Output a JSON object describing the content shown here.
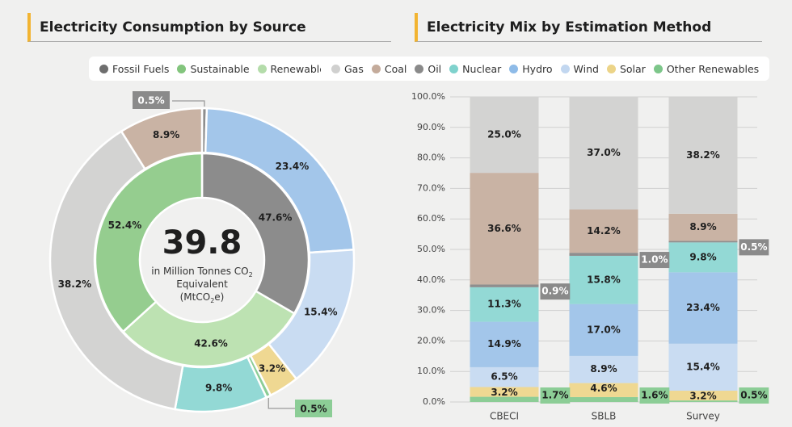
{
  "colors": {
    "accent": "#f2b431",
    "fossil": "#8c8c8c",
    "sustainable": "#95cd8f",
    "renewable": "#bde2b2",
    "gas": "#d3d3d2",
    "coal": "#c9b3a4",
    "oil": "#8e8e8e",
    "nuclear": "#93d9d5",
    "hydro": "#a3c6ea",
    "wind": "#c9dcf2",
    "solar": "#efd892",
    "other": "#8ccd96",
    "gray_label": "#8a8a8a",
    "green_label": "#8ccd96"
  },
  "left": {
    "title": "Electricity Consumption by Source",
    "legend": [
      {
        "label": "Fossil Fuels",
        "color": "#6e6e6e"
      },
      {
        "label": "Sustainable",
        "color": "#83c57d"
      },
      {
        "label": "Renewable",
        "color": "#b4dcaa"
      }
    ],
    "center": {
      "value": "39.8",
      "line1": "in Million Tonnes CO",
      "line1_sub": "2",
      "line2": "Equivalent",
      "line3_a": "(MtCO",
      "line3_sub": "2",
      "line3_b": "e)"
    }
  },
  "right": {
    "title": "Electricity Mix by Estimation Method",
    "legend": [
      {
        "label": "Gas",
        "color": "#d0d0cf"
      },
      {
        "label": "Coal",
        "color": "#c4ab9b"
      },
      {
        "label": "Oil",
        "color": "#8a8a8a"
      },
      {
        "label": "Nuclear",
        "color": "#7fd2cd"
      },
      {
        "label": "Hydro",
        "color": "#8ebbe8"
      },
      {
        "label": "Wind",
        "color": "#c2d7f0"
      },
      {
        "label": "Solar",
        "color": "#ecd488"
      },
      {
        "label": "Other Renewables",
        "color": "#7dc68a"
      }
    ]
  },
  "chart_data": [
    {
      "type": "pie",
      "variant": "nested-donut",
      "title": "Electricity Consumption by Source",
      "center_value": "39.8",
      "inner_ring": [
        {
          "name": "Fossil Fuels",
          "value": 47.6,
          "label": "47.6%"
        },
        {
          "name": "Renewable",
          "value": 42.6,
          "label": "42.6%"
        },
        {
          "name": "Sustainable",
          "value": 52.4,
          "label": "52.4%"
        }
      ],
      "outer_ring": [
        {
          "name": "Oil",
          "value": 0.5,
          "label": "0.5%"
        },
        {
          "name": "Hydro",
          "value": 23.4,
          "label": "23.4%"
        },
        {
          "name": "Wind",
          "value": 15.4,
          "label": "15.4%"
        },
        {
          "name": "Solar",
          "value": 3.2,
          "label": "3.2%"
        },
        {
          "name": "Other Renewables",
          "value": 0.5,
          "label": "0.5%"
        },
        {
          "name": "Nuclear",
          "value": 9.8,
          "label": "9.8%"
        },
        {
          "name": "Gas",
          "value": 38.2,
          "label": "38.2%"
        },
        {
          "name": "Coal",
          "value": 8.9,
          "label": "8.9%"
        }
      ]
    },
    {
      "type": "bar",
      "variant": "stacked-100",
      "title": "Electricity Mix by Estimation Method",
      "categories": [
        "CBECI",
        "SBLB",
        "Survey"
      ],
      "ylim": [
        0,
        100
      ],
      "yticks": [
        "0.0%",
        "10.0%",
        "20.0%",
        "30.0%",
        "40.0%",
        "50.0%",
        "60.0%",
        "70.0%",
        "80.0%",
        "90.0%",
        "100.0%"
      ],
      "series": [
        {
          "name": "Other Renewables",
          "values": [
            1.7,
            1.6,
            0.5
          ],
          "labels": [
            "1.7%",
            "1.6%",
            "0.5%"
          ]
        },
        {
          "name": "Solar",
          "values": [
            3.2,
            4.6,
            3.2
          ],
          "labels": [
            "3.2%",
            "4.6%",
            "3.2%"
          ]
        },
        {
          "name": "Wind",
          "values": [
            6.5,
            8.9,
            15.4
          ],
          "labels": [
            "6.5%",
            "8.9%",
            "15.4%"
          ]
        },
        {
          "name": "Hydro",
          "values": [
            14.9,
            17.0,
            23.4
          ],
          "labels": [
            "14.9%",
            "17.0%",
            "23.4%"
          ]
        },
        {
          "name": "Nuclear",
          "values": [
            11.3,
            15.8,
            9.8
          ],
          "labels": [
            "11.3%",
            "15.8%",
            "9.8%"
          ]
        },
        {
          "name": "Oil",
          "values": [
            0.9,
            1.0,
            0.5
          ],
          "labels": [
            "0.9%",
            "1.0%",
            "0.5%"
          ]
        },
        {
          "name": "Coal",
          "values": [
            36.6,
            14.2,
            8.9
          ],
          "labels": [
            "36.6%",
            "14.2%",
            "8.9%"
          ]
        },
        {
          "name": "Gas",
          "values": [
            25.0,
            37.0,
            38.2
          ],
          "labels": [
            "25.0%",
            "37.0%",
            "38.2%"
          ]
        }
      ]
    }
  ]
}
